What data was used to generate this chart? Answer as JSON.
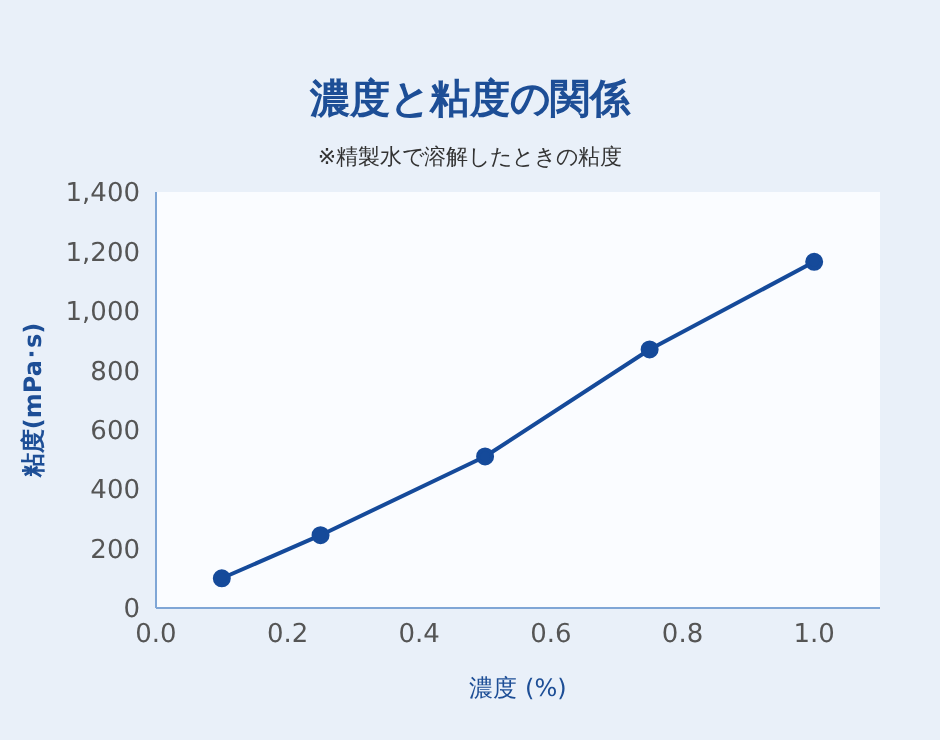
{
  "chart_data": {
    "type": "line",
    "title": "濃度と粘度の関係",
    "subtitle": "※精製水で溶解したときの粘度",
    "xlabel": "濃度 (%)",
    "ylabel": "粘度(mPa･s)",
    "x": [
      0.1,
      0.25,
      0.5,
      0.75,
      1.0
    ],
    "series": [
      {
        "color": "#154a9a",
        "values": [
          100,
          245,
          510,
          870,
          1165
        ]
      }
    ],
    "xlim": [
      0,
      1.1
    ],
    "xticks": [
      {
        "value": 0,
        "label": "0.0"
      },
      0.2,
      0.4,
      0.6,
      0.8,
      {
        "value": 1,
        "label": "1.0"
      }
    ],
    "ylim": [
      0,
      1400
    ],
    "yticks": [
      0,
      200,
      400,
      600,
      800,
      {
        "value": 1000,
        "label": "1,000"
      },
      {
        "value": 1200,
        "label": "1,200"
      },
      {
        "value": 1400,
        "label": "1,400"
      }
    ],
    "grid": false,
    "legend": false,
    "marker": "circle",
    "line_style": "solid"
  }
}
